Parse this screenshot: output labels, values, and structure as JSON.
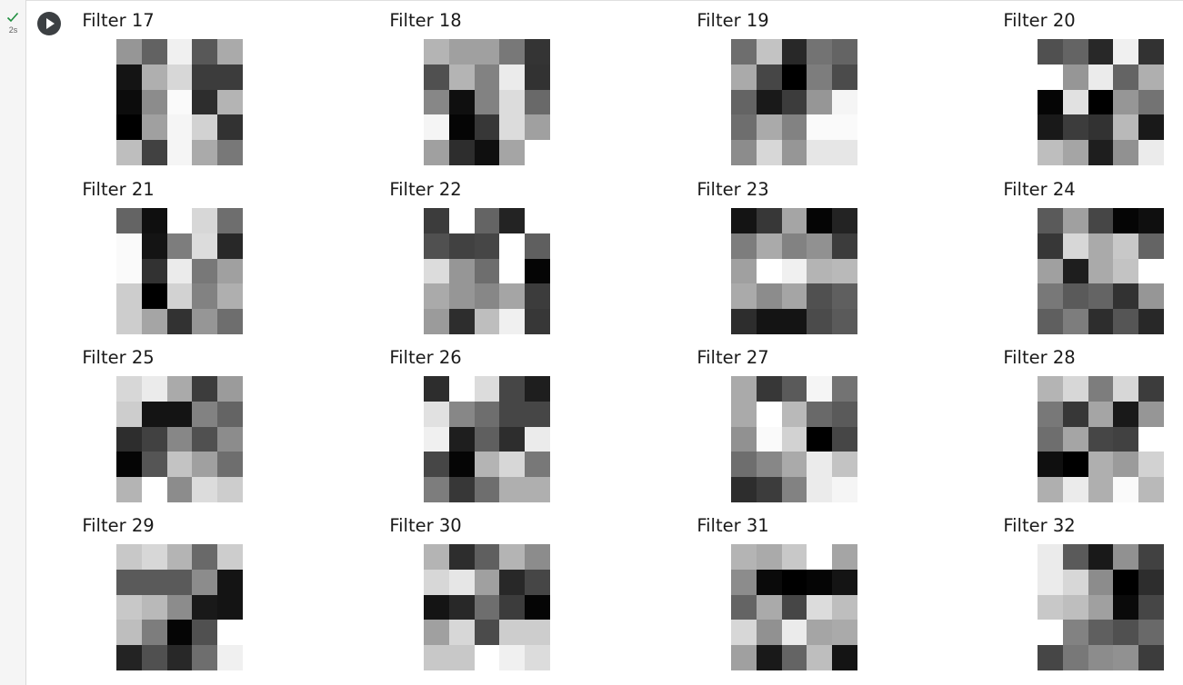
{
  "cell_status": {
    "time": "2s",
    "check_color": "#1e8e3e"
  },
  "run_button": {
    "icon": "play-icon"
  },
  "filters": [
    {
      "title": "Filter 17",
      "pixels": [
        [
          150,
          98,
          240,
          88,
          170
        ],
        [
          20,
          175,
          215,
          60,
          60
        ],
        [
          12,
          140,
          250,
          45,
          180
        ],
        [
          0,
          160,
          245,
          210,
          50
        ],
        [
          190,
          65,
          245,
          170,
          120
        ]
      ]
    },
    {
      "title": "Filter 18",
      "pixels": [
        [
          180,
          160,
          160,
          120,
          52
        ],
        [
          80,
          180,
          130,
          235,
          50
        ],
        [
          135,
          15,
          130,
          220,
          105
        ],
        [
          245,
          5,
          55,
          220,
          160
        ],
        [
          160,
          45,
          15,
          165,
          255
        ]
      ]
    },
    {
      "title": "Filter 19",
      "pixels": [
        [
          110,
          195,
          40,
          115,
          100
        ],
        [
          170,
          70,
          0,
          125,
          75
        ],
        [
          100,
          25,
          60,
          150,
          245
        ],
        [
          110,
          170,
          130,
          250,
          250
        ],
        [
          140,
          215,
          150,
          230,
          230
        ]
      ]
    },
    {
      "title": "Filter 20",
      "pixels": [
        [
          80,
          100,
          40,
          240,
          50
        ],
        [
          255,
          150,
          235,
          100,
          175
        ],
        [
          5,
          225,
          0,
          150,
          115
        ],
        [
          25,
          60,
          50,
          185,
          25
        ],
        [
          190,
          165,
          30,
          145,
          235
        ]
      ]
    },
    {
      "title": "Filter 21",
      "pixels": [
        [
          100,
          15,
          255,
          215,
          110
        ],
        [
          250,
          20,
          125,
          220,
          40
        ],
        [
          250,
          50,
          235,
          120,
          160
        ],
        [
          205,
          0,
          210,
          130,
          175
        ],
        [
          205,
          165,
          50,
          150,
          110
        ]
      ]
    },
    {
      "title": "Filter 22",
      "pixels": [
        [
          60,
          255,
          100,
          35,
          255
        ],
        [
          80,
          65,
          70,
          255,
          95
        ],
        [
          220,
          150,
          110,
          255,
          5
        ],
        [
          170,
          150,
          135,
          165,
          60
        ],
        [
          155,
          45,
          190,
          240,
          55
        ]
      ]
    },
    {
      "title": "Filter 23",
      "pixels": [
        [
          20,
          55,
          165,
          5,
          35
        ],
        [
          125,
          170,
          130,
          145,
          60
        ],
        [
          160,
          255,
          240,
          180,
          185
        ],
        [
          170,
          140,
          165,
          80,
          95
        ],
        [
          45,
          20,
          20,
          75,
          90
        ]
      ]
    },
    {
      "title": "Filter 24",
      "pixels": [
        [
          90,
          160,
          70,
          5,
          15
        ],
        [
          55,
          215,
          170,
          200,
          100
        ],
        [
          160,
          30,
          170,
          195,
          255
        ],
        [
          120,
          90,
          100,
          50,
          150
        ],
        [
          95,
          125,
          45,
          85,
          40
        ]
      ]
    },
    {
      "title": "Filter 25",
      "pixels": [
        [
          215,
          235,
          170,
          60,
          155
        ],
        [
          205,
          20,
          20,
          130,
          100
        ],
        [
          45,
          65,
          135,
          80,
          140
        ],
        [
          5,
          85,
          195,
          160,
          110
        ],
        [
          180,
          255,
          140,
          220,
          205
        ]
      ]
    },
    {
      "title": "Filter 26",
      "pixels": [
        [
          45,
          255,
          220,
          70,
          30
        ],
        [
          225,
          135,
          110,
          70,
          70
        ],
        [
          240,
          30,
          95,
          45,
          235
        ],
        [
          70,
          5,
          180,
          215,
          120
        ],
        [
          125,
          55,
          110,
          175,
          175
        ]
      ]
    },
    {
      "title": "Filter 27",
      "pixels": [
        [
          170,
          55,
          90,
          245,
          115
        ],
        [
          170,
          255,
          185,
          105,
          90
        ],
        [
          145,
          250,
          210,
          0,
          70
        ],
        [
          110,
          135,
          170,
          235,
          195
        ],
        [
          45,
          60,
          130,
          235,
          245
        ]
      ]
    },
    {
      "title": "Filter 28",
      "pixels": [
        [
          180,
          215,
          125,
          215,
          60
        ],
        [
          120,
          55,
          165,
          25,
          150
        ],
        [
          110,
          165,
          70,
          65,
          255
        ],
        [
          15,
          0,
          175,
          155,
          210
        ],
        [
          175,
          235,
          175,
          250,
          185
        ]
      ]
    },
    {
      "title": "Filter 29",
      "pixels": [
        [
          200,
          215,
          180,
          105,
          205
        ],
        [
          90,
          90,
          90,
          140,
          20
        ],
        [
          200,
          185,
          140,
          25,
          20
        ],
        [
          190,
          125,
          5,
          80,
          255
        ],
        [
          35,
          80,
          40,
          110,
          240
        ]
      ]
    },
    {
      "title": "Filter 30",
      "pixels": [
        [
          180,
          45,
          95,
          180,
          140
        ],
        [
          215,
          230,
          160,
          40,
          70
        ],
        [
          20,
          40,
          110,
          60,
          5
        ],
        [
          160,
          215,
          75,
          205,
          205
        ],
        [
          200,
          200,
          255,
          240,
          220
        ]
      ]
    },
    {
      "title": "Filter 31",
      "pixels": [
        [
          180,
          170,
          200,
          255,
          165
        ],
        [
          140,
          10,
          0,
          5,
          20
        ],
        [
          100,
          170,
          70,
          220,
          190
        ],
        [
          215,
          145,
          235,
          165,
          170
        ],
        [
          160,
          25,
          100,
          190,
          20
        ]
      ]
    },
    {
      "title": "Filter 32",
      "pixels": [
        [
          235,
          90,
          25,
          145,
          65
        ],
        [
          235,
          215,
          140,
          0,
          45
        ],
        [
          200,
          190,
          160,
          10,
          70
        ],
        [
          255,
          130,
          95,
          80,
          105
        ],
        [
          70,
          120,
          140,
          145,
          60
        ]
      ]
    }
  ]
}
